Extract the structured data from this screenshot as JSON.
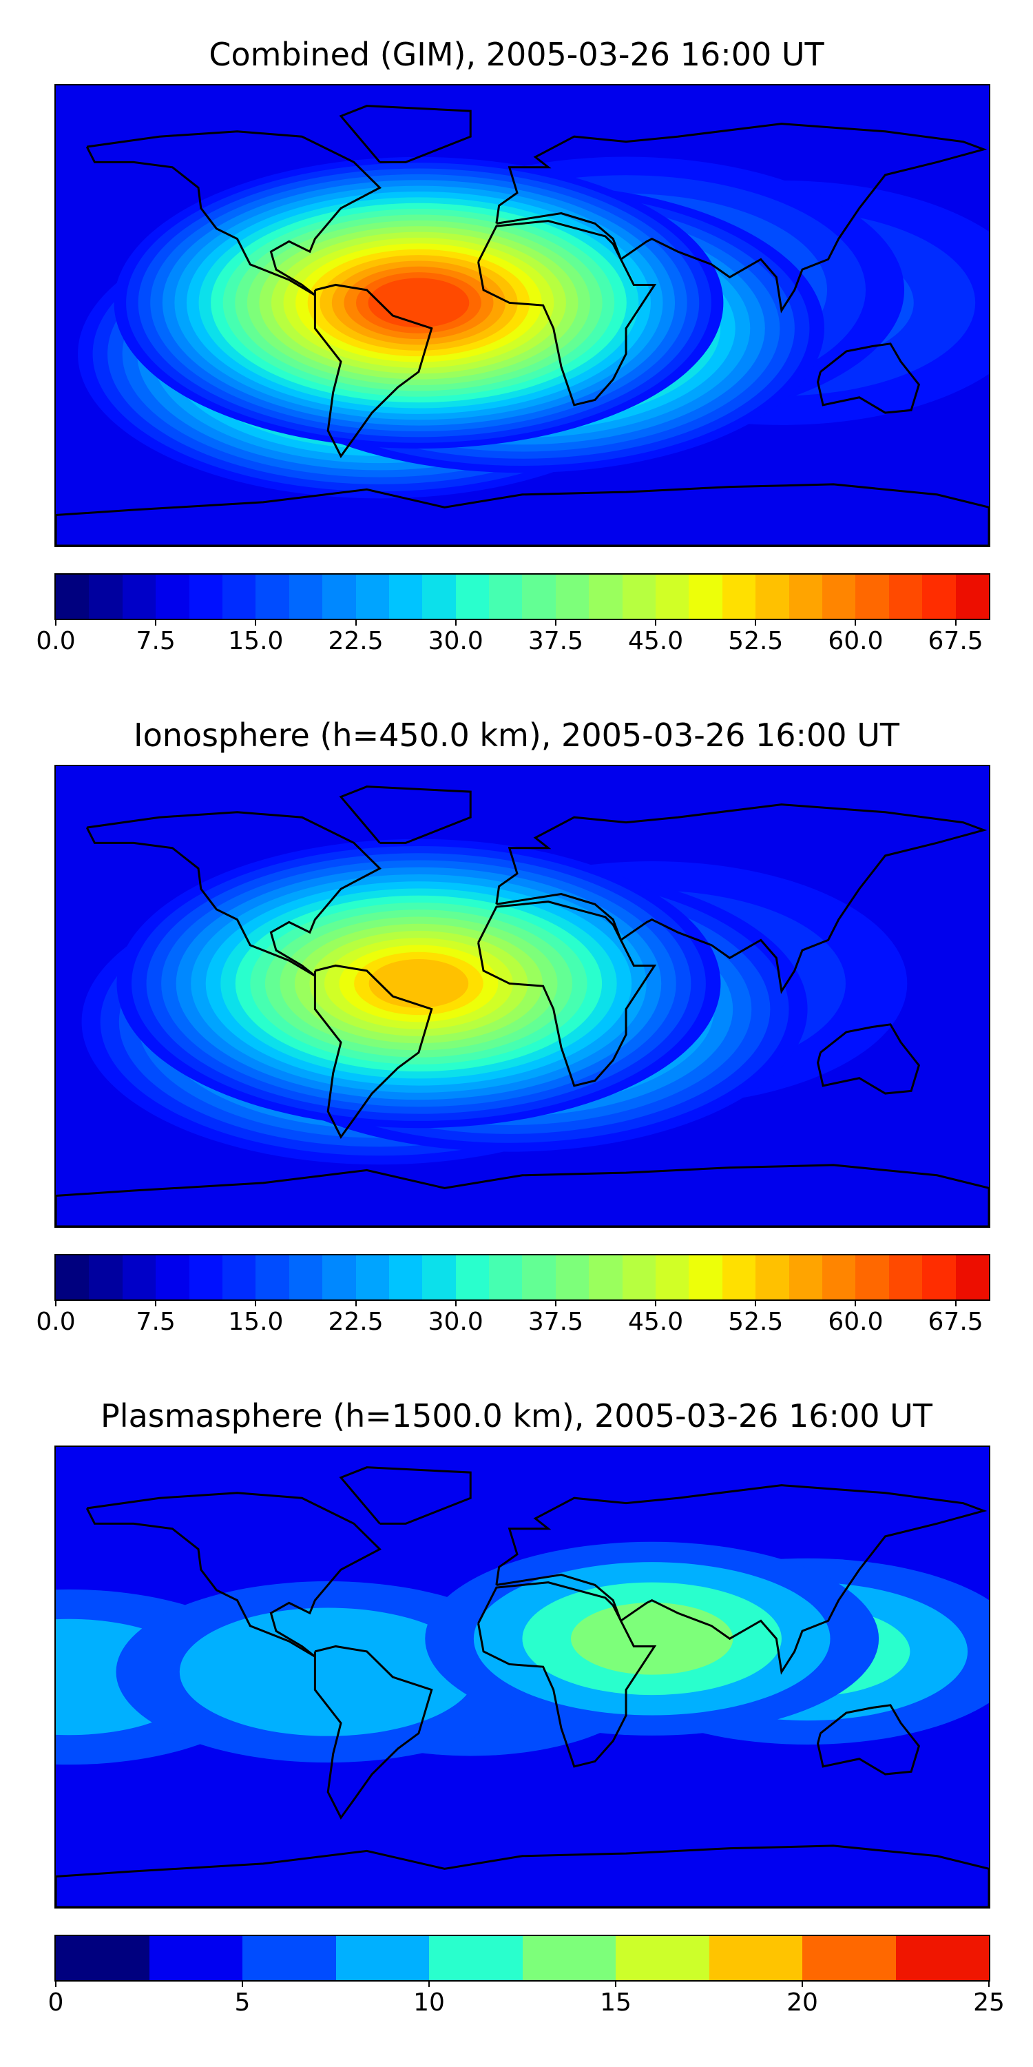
{
  "chart_data": [
    {
      "type": "heatmap",
      "title": "Combined (GIM), 2005-03-26 16:00 UT",
      "colorbar": {
        "min": 0.0,
        "max": 70.0,
        "step": 2.5,
        "tick_labels": [
          "0.0",
          "7.5",
          "15.0",
          "22.5",
          "30.0",
          "37.5",
          "45.0",
          "52.5",
          "60.0",
          "67.5"
        ],
        "tick_values": [
          0.0,
          7.5,
          15.0,
          22.5,
          30.0,
          37.5,
          45.0,
          52.5,
          60.0,
          67.5
        ]
      },
      "background_value": 8.75,
      "blobs": [
        {
          "lon": -40,
          "lat": 5,
          "value": 66
        },
        {
          "lon": -55,
          "lat": -15,
          "value": 55
        },
        {
          "lon": 0,
          "lat": -5,
          "value": 55
        },
        {
          "lon": 40,
          "lat": 10,
          "value": 25
        },
        {
          "lon": 100,
          "lat": 5,
          "value": 18
        }
      ]
    },
    {
      "type": "heatmap",
      "title": "Ionosphere  (h=450.0 km), 2005-03-26 16:00 UT",
      "colorbar": {
        "min": 0.0,
        "max": 70.0,
        "step": 2.5,
        "tick_labels": [
          "0.0",
          "7.5",
          "15.0",
          "22.5",
          "30.0",
          "37.5",
          "45.0",
          "52.5",
          "60.0",
          "67.5"
        ],
        "tick_values": [
          0.0,
          7.5,
          15.0,
          22.5,
          30.0,
          37.5,
          45.0,
          52.5,
          60.0,
          67.5
        ]
      },
      "background_value": 8.75,
      "blobs": [
        {
          "lon": -40,
          "lat": 5,
          "value": 55
        },
        {
          "lon": -55,
          "lat": -10,
          "value": 45
        },
        {
          "lon": -5,
          "lat": -5,
          "value": 45
        },
        {
          "lon": 50,
          "lat": 5,
          "value": 18
        }
      ]
    },
    {
      "type": "heatmap",
      "title": "Plasmasphere (h=1500.0 km), 2005-03-26 16:00 UT",
      "colorbar": {
        "min": 0,
        "max": 25,
        "step": 2.5,
        "tick_labels": [
          "0",
          "5",
          "10",
          "15",
          "20",
          "25"
        ],
        "tick_values": [
          0,
          5,
          10,
          15,
          20,
          25
        ]
      },
      "background_value": 3.75,
      "blobs": [
        {
          "lon": 50,
          "lat": 15,
          "value": 14
        },
        {
          "lon": 110,
          "lat": 10,
          "value": 12
        },
        {
          "lon": -75,
          "lat": 2,
          "value": 11
        },
        {
          "lon": -175,
          "lat": 0,
          "value": 10
        },
        {
          "lon": -20,
          "lat": 0,
          "value": 8
        }
      ]
    }
  ],
  "colormap": {
    "jet_70": [
      "#00007f",
      "#00009f",
      "#0000c8",
      "#0000ed",
      "#0010ff",
      "#002cff",
      "#004cff",
      "#0068ff",
      "#0088ff",
      "#00a4ff",
      "#00c4ff",
      "#0ce0eb",
      "#29ffcd",
      "#46ffb1",
      "#63ff94",
      "#7dff7a",
      "#9aff5d",
      "#b7ff40",
      "#d1ff26",
      "#edff09",
      "#ffe000",
      "#ffc100",
      "#ffa400",
      "#ff8500",
      "#ff6800",
      "#ff4a00",
      "#ff2d00",
      "#ed0e00",
      "#c80000",
      "#a00000"
    ],
    "jet_25": [
      "#00007f",
      "#0000f1",
      "#004cff",
      "#00b0ff",
      "#29ffcd",
      "#7dff7a",
      "#cdff2a",
      "#ffc400",
      "#ff6800",
      "#f01600"
    ]
  }
}
